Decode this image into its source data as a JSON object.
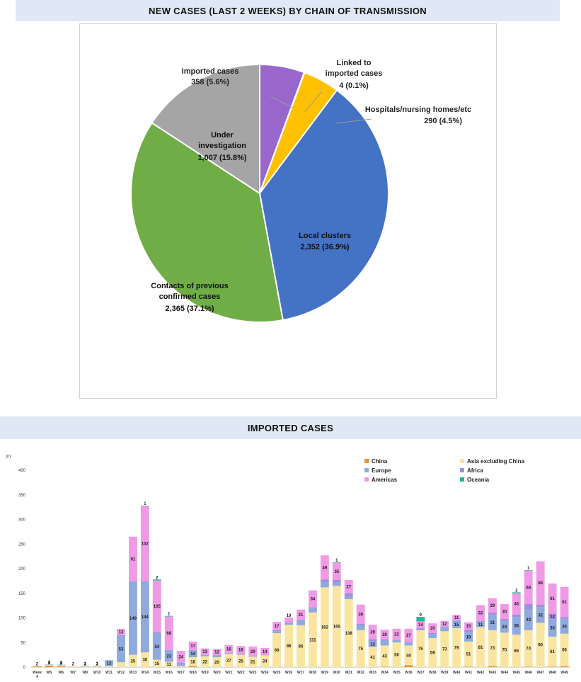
{
  "pie_title": "NEW CASES (LAST 2 WEEKS) BY CHAIN OF TRANSMISSION",
  "bar_title": "IMPORTED CASES",
  "chart_data": [
    {
      "type": "pie",
      "title": "NEW CASES (LAST 2 WEEKS) BY CHAIN OF TRANSMISSION",
      "slices": [
        {
          "name": "Imported cases",
          "value": 358,
          "label": "358 (5.6%)",
          "color": "#9966cc"
        },
        {
          "name": "Linked to imported cases",
          "value": 4,
          "label": "4 (0.1%)",
          "color": "#f4a000"
        },
        {
          "name": "Hospitals/nursing homes/etc",
          "value": 290,
          "label": "290 (4.5%)",
          "color": "#ffc000"
        },
        {
          "name": "Local clusters",
          "value": 2352,
          "label": "2,352 (36.9%)",
          "color": "#4472c4"
        },
        {
          "name": "Contacts of previous confirmed cases",
          "value": 2365,
          "label": "2,365 (37.1%)",
          "color": "#70ad47"
        },
        {
          "name": "Under investigation",
          "value": 1007,
          "label": "1,007 (15.8%)",
          "color": "#a5a5a5"
        }
      ]
    },
    {
      "type": "bar",
      "stacked": true,
      "title": "IMPORTED CASES",
      "ylabel": "(n)",
      "ylim": [
        0,
        400
      ],
      "yticks": [
        0,
        50,
        100,
        150,
        200,
        250,
        300,
        350,
        400
      ],
      "categories": [
        "Week 4",
        "W5",
        "W6",
        "W7",
        "W9",
        "W10",
        "W11",
        "W12",
        "W13",
        "W14",
        "W15",
        "W16",
        "W17",
        "W18",
        "W19",
        "W20",
        "W21",
        "W22",
        "W23",
        "W24",
        "W25",
        "W26",
        "W27",
        "W28",
        "W29",
        "W30",
        "W31",
        "W32",
        "W33",
        "W34",
        "W35",
        "W36",
        "W37",
        "W38",
        "W39",
        "W40",
        "W41",
        "W42",
        "W43",
        "W44",
        "W45",
        "W46",
        "W47",
        "W48",
        "W49"
      ],
      "legend_position": "top-right",
      "series": [
        {
          "name": "China",
          "color": "#e8943a",
          "values": [
            2,
            3,
            2,
            0,
            0,
            0,
            0,
            0,
            0,
            0,
            0,
            0,
            0,
            2,
            0,
            0,
            0,
            0,
            0,
            0,
            0,
            0,
            0,
            0,
            0,
            0,
            0,
            0,
            0,
            1,
            0,
            4,
            0,
            0,
            0,
            0,
            1,
            0,
            2,
            0,
            0,
            1,
            0,
            1,
            2
          ]
        },
        {
          "name": "Asia excluding China",
          "color": "#fae5a0",
          "values": [
            0,
            2,
            2,
            2,
            2,
            2,
            2,
            10,
            25,
            30,
            15,
            11,
            2,
            18,
            22,
            20,
            27,
            25,
            21,
            24,
            69,
            86,
            85,
            111,
            162,
            165,
            138,
            75,
            41,
            43,
            50,
            40,
            75,
            59,
            73,
            79,
            51,
            81,
            73,
            70,
            66,
            74,
            90,
            61,
            66
          ]
        },
        {
          "name": "Europe",
          "color": "#8faadc",
          "values": [
            0,
            1,
            1,
            0,
            1,
            1,
            12,
            53,
            149,
            144,
            54,
            23,
            6,
            14,
            3,
            4,
            1,
            1,
            0,
            0,
            4,
            4,
            10,
            10,
            10,
            7,
            5,
            10,
            12,
            10,
            5,
            6,
            0,
            8,
            8,
            15,
            19,
            11,
            31,
            24,
            36,
            43,
            32,
            35,
            30
          ]
        },
        {
          "name": "Africa",
          "color": "#a08fe0",
          "values": [
            0,
            0,
            0,
            0,
            0,
            0,
            0,
            2,
            0,
            1,
            2,
            1,
            1,
            1,
            0,
            1,
            1,
            1,
            1,
            1,
            2,
            1,
            1,
            1,
            6,
            5,
            7,
            3,
            4,
            2,
            1,
            1,
            4,
            2,
            1,
            1,
            5,
            2,
            5,
            4,
            5,
            10,
            5,
            12,
            4
          ]
        },
        {
          "name": "Americas",
          "color": "#f09ae6",
          "values": [
            0,
            0,
            0,
            0,
            0,
            0,
            0,
            13,
            91,
            152,
            105,
            68,
            24,
            17,
            13,
            12,
            16,
            16,
            20,
            14,
            17,
            10,
            21,
            34,
            49,
            35,
            27,
            39,
            29,
            20,
            22,
            27,
            14,
            20,
            12,
            11,
            15,
            32,
            29,
            30,
            43,
            68,
            88,
            61,
            61
          ]
        },
        {
          "name": "Oceania",
          "color": "#22b890",
          "values": [
            0,
            0,
            0,
            0,
            0,
            0,
            0,
            0,
            0,
            1,
            2,
            1,
            0,
            0,
            0,
            0,
            0,
            0,
            0,
            0,
            0,
            0,
            0,
            0,
            0,
            1,
            0,
            0,
            0,
            0,
            0,
            0,
            9,
            0,
            0,
            0,
            0,
            0,
            0,
            0,
            2,
            1,
            0,
            0,
            0
          ]
        }
      ]
    }
  ]
}
